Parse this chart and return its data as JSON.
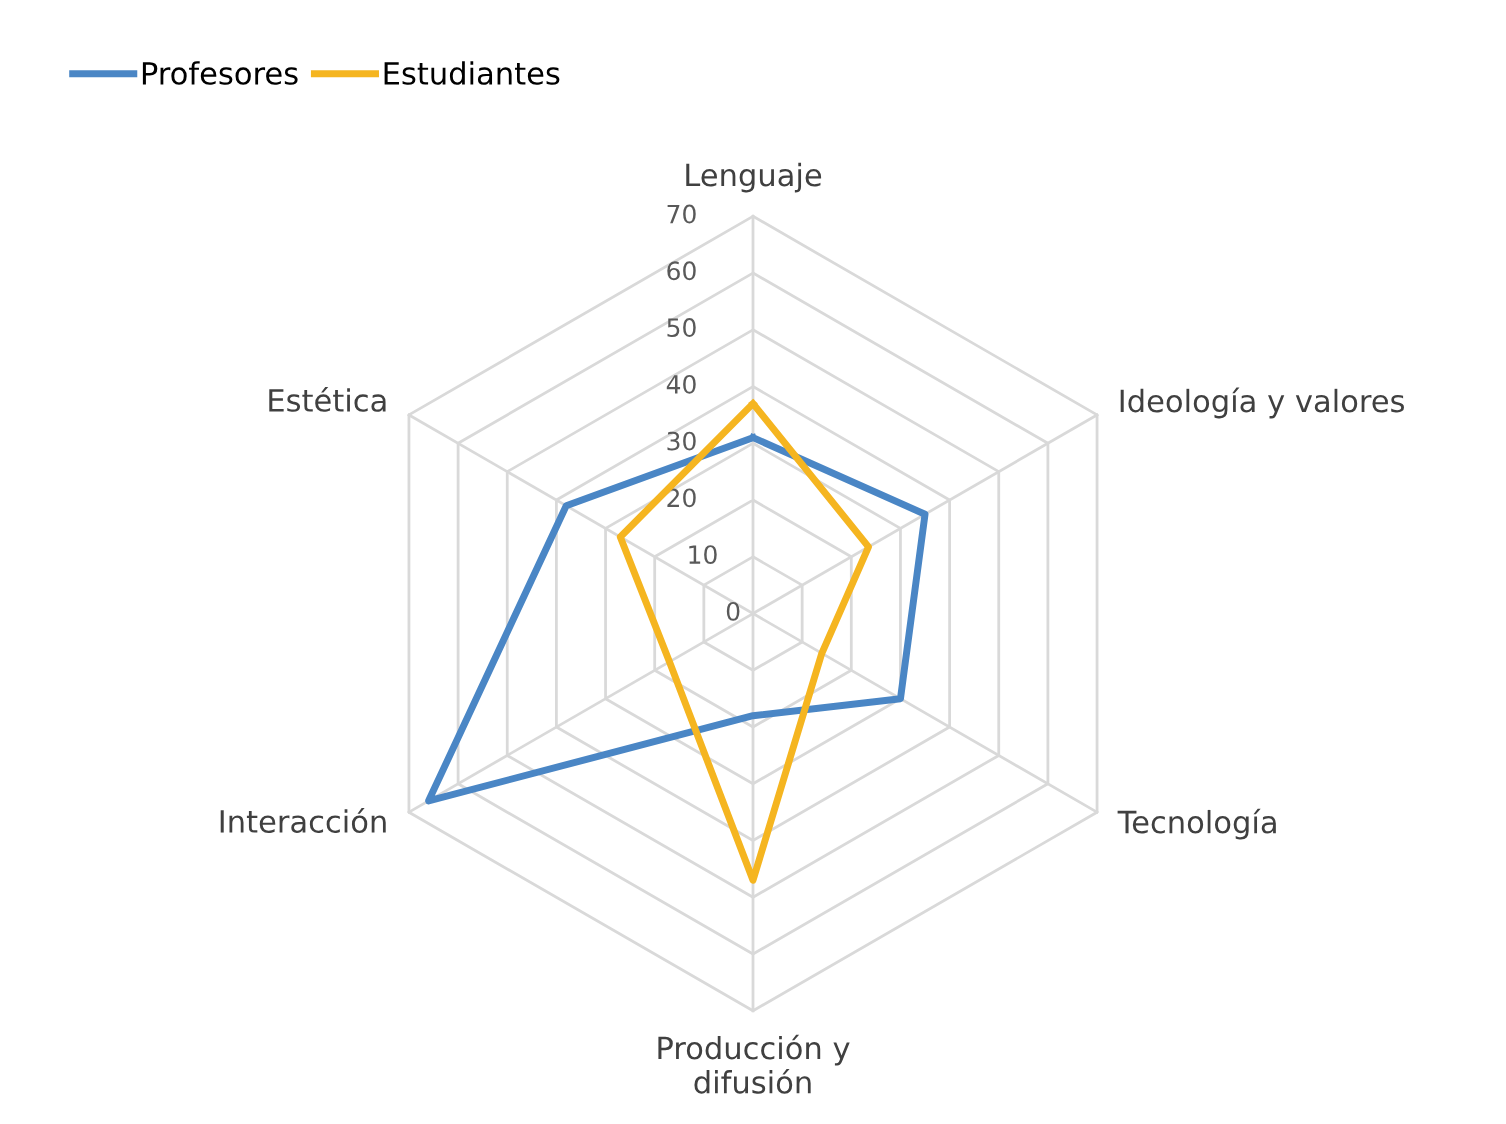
{
  "chart_data": {
    "type": "radar",
    "categories": [
      "Lenguaje",
      "Ideología y valores",
      "Tecnología",
      "Producción y\ndifusión",
      "Interacción",
      "Estética"
    ],
    "series": [
      {
        "name": "Profesores",
        "color": "#4a86c5",
        "values": [
          31,
          35,
          30,
          18,
          66,
          38
        ]
      },
      {
        "name": "Estudiantes",
        "color": "#f5b520",
        "values": [
          37,
          23.5,
          14,
          47,
          17,
          27
        ]
      }
    ],
    "ylim": [
      0,
      70
    ],
    "yticks": [
      0,
      10,
      20,
      30,
      40,
      50,
      60,
      70
    ],
    "grid": true,
    "legend": "top left",
    "marker": "none",
    "line_style": "solid"
  }
}
